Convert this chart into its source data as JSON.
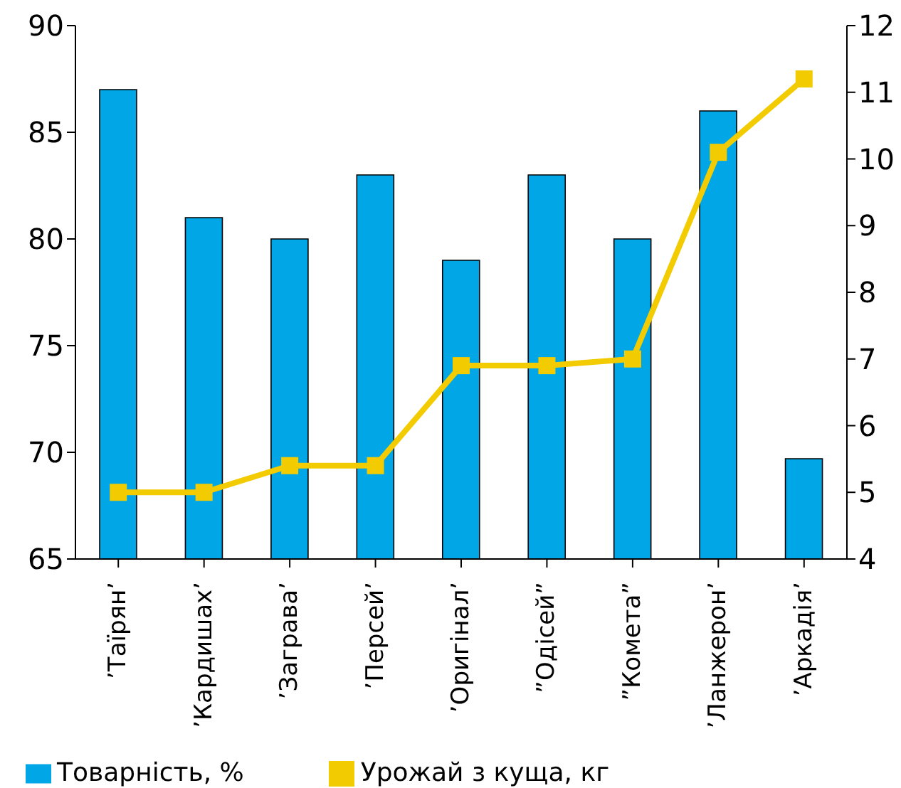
{
  "chart_data": {
    "type": "bar",
    "categories": [
      "’Таїрян’",
      "’Кардишах’",
      "’Заграва’",
      "’Персей’",
      "’Оригінал’",
      "”Одісей”",
      "”Комета”",
      "’Ланжерон’",
      "’Аркадія’"
    ],
    "series": [
      {
        "name": "Товарність, %",
        "color": "#00a6e6",
        "values": [
          87,
          81,
          80,
          83,
          79,
          83,
          80,
          86,
          69.7
        ]
      },
      {
        "name": "Урожай з куща, кг",
        "type": "line",
        "axis": "y2",
        "color": "#f2cc00",
        "values": [
          5.0,
          5.0,
          5.4,
          5.4,
          6.9,
          6.9,
          7.0,
          10.1,
          11.2
        ]
      }
    ],
    "ylim": [
      65,
      90
    ],
    "yticks": [
      65,
      70,
      75,
      80,
      85,
      90
    ],
    "y2lim": [
      4,
      12
    ],
    "y2ticks": [
      4,
      5,
      6,
      7,
      8,
      9,
      10,
      11,
      12
    ],
    "grid": false,
    "legend": "bottom",
    "marker": "square",
    "line_style": "solid"
  }
}
